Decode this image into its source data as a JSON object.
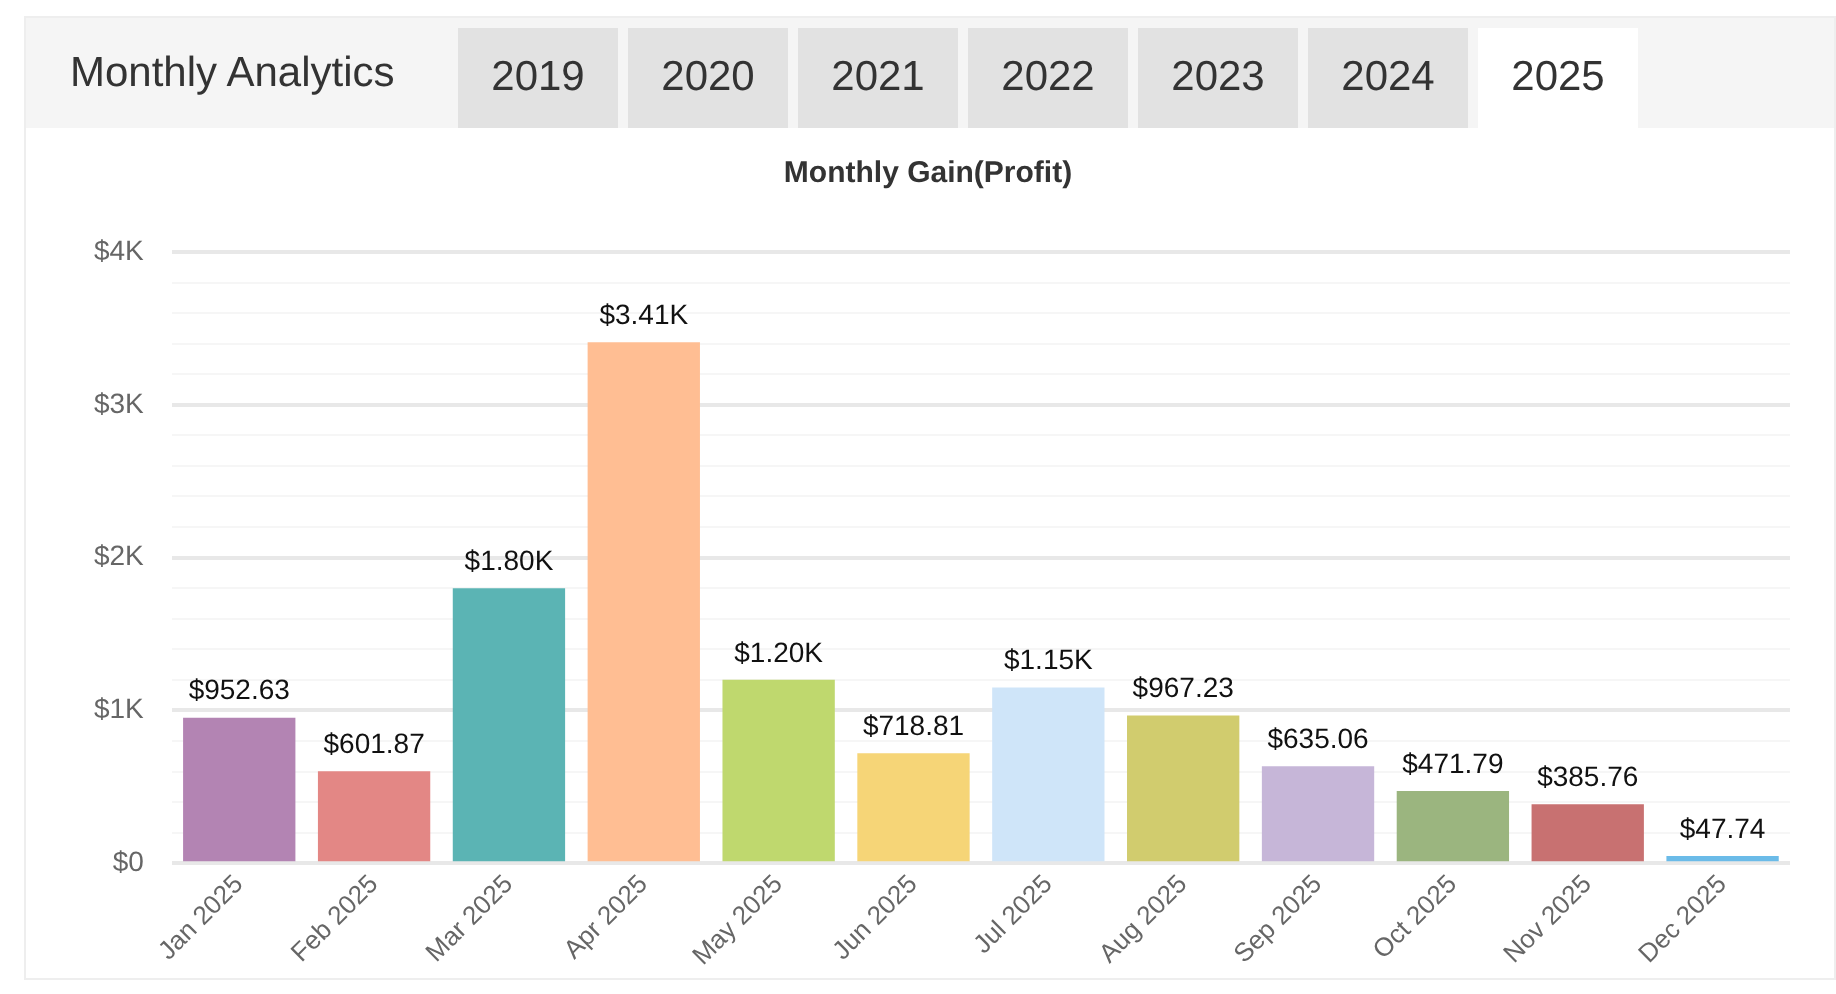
{
  "chart_data": {
    "type": "bar",
    "title": "Monthly Gain(Profit)",
    "annotations": [
      "Monthly Analytics",
      "2019",
      "2020",
      "2021",
      "2022",
      "2023",
      "2024",
      "2025"
    ],
    "categories": [
      "Jan 2025",
      "Feb 2025",
      "Mar 2025",
      "Apr 2025",
      "May 2025",
      "Jun 2025",
      "Jul 2025",
      "Aug 2025",
      "Sep 2025",
      "Oct 2025",
      "Nov 2025",
      "Dec 2025"
    ],
    "values": [
      952.63,
      601.87,
      1800,
      3410,
      1200,
      718.81,
      1150,
      967.23,
      635.06,
      471.79,
      385.76,
      47.74
    ],
    "value_labels": [
      "$952.63",
      "$601.87",
      "$1.80K",
      "$3.41K",
      "$1.20K",
      "$718.81",
      "$1.15K",
      "$967.23",
      "$635.06",
      "$471.79",
      "$385.76",
      "$47.74"
    ],
    "colors": [
      "#b384b3",
      "#e38785",
      "#5bb4b4",
      "#ffbe93",
      "#bfd86e",
      "#f6d577",
      "#cfe5f9",
      "#d1cc6e",
      "#c6b6d8",
      "#9bb57f",
      "#c87171",
      "#6bbbe8"
    ],
    "ylim": [
      0,
      4000
    ],
    "yticks": [
      {
        "value": 0,
        "label": "$0"
      },
      {
        "value": 200,
        "label": null
      },
      {
        "value": 400,
        "label": null
      },
      {
        "value": 600,
        "label": null
      },
      {
        "value": 800,
        "label": null
      },
      {
        "value": 1000,
        "label": "$1K"
      },
      {
        "value": 1200,
        "label": null
      },
      {
        "value": 1400,
        "label": null
      },
      {
        "value": 1600,
        "label": null
      },
      {
        "value": 1800,
        "label": null
      },
      {
        "value": 2000,
        "label": "$2K"
      },
      {
        "value": 2200,
        "label": null
      },
      {
        "value": 2400,
        "label": null
      },
      {
        "value": 2600,
        "label": null
      },
      {
        "value": 2800,
        "label": null
      },
      {
        "value": 3000,
        "label": "$3K"
      },
      {
        "value": 3200,
        "label": null
      },
      {
        "value": 3400,
        "label": null
      },
      {
        "value": 3600,
        "label": null
      },
      {
        "value": 3800,
        "label": null
      },
      {
        "value": 4000,
        "label": "$4K"
      }
    ],
    "grid": "y",
    "legend": false
  }
}
